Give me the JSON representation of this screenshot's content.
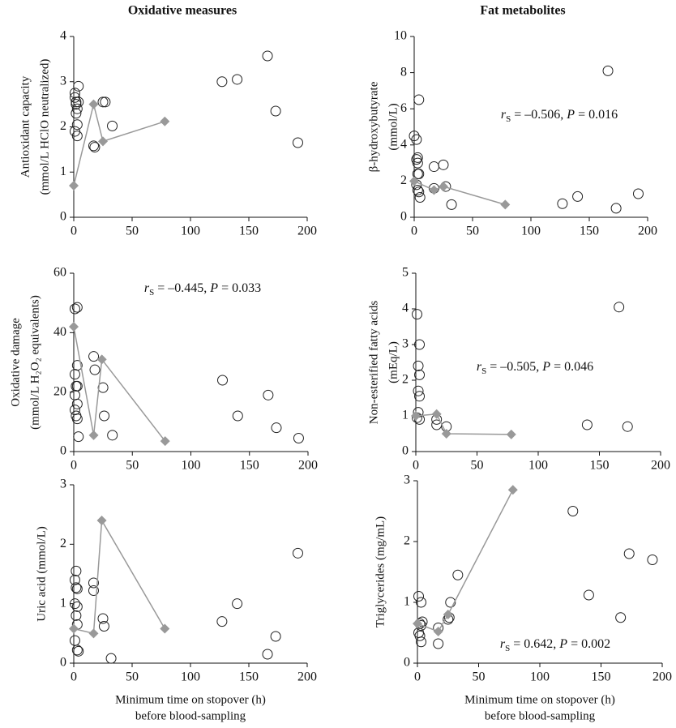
{
  "chart_data": [
    {
      "type": "scatter",
      "title": "Oxidative measures",
      "ylabel": [
        "Antioxidant capacity",
        "(mmol/L HClO neutralized)"
      ],
      "xlim": [
        0,
        200
      ],
      "xticks": [
        0,
        50,
        100,
        150,
        200
      ],
      "ylim": [
        0,
        4
      ],
      "yticks": [
        0,
        1,
        2,
        3,
        4
      ],
      "series": [
        {
          "marker": "circle",
          "color": "#222222",
          "x": [
            1,
            1,
            2,
            2,
            1,
            3,
            3,
            3,
            2,
            4,
            4,
            17,
            18,
            25,
            27,
            33,
            127,
            140,
            166,
            173,
            192
          ],
          "values": [
            2.75,
            2.65,
            2.55,
            2.5,
            1.9,
            1.8,
            2.05,
            2.4,
            2.3,
            2.9,
            2.55,
            1.58,
            1.55,
            2.55,
            2.55,
            2.02,
            3.0,
            3.05,
            3.57,
            2.35,
            1.65
          ]
        },
        {
          "marker": "diamond",
          "color": "#999999",
          "x": [
            0,
            17,
            25,
            78
          ],
          "values": [
            0.7,
            2.5,
            1.68,
            2.12
          ]
        }
      ]
    },
    {
      "type": "scatter",
      "title": "Fat metabolites",
      "ylabel": [
        "β-hydroxybutyrate",
        "(mmol/L)"
      ],
      "xlim": [
        0,
        200
      ],
      "xticks": [
        0,
        50,
        100,
        150,
        200
      ],
      "ylim": [
        0,
        10
      ],
      "yticks": [
        0,
        2,
        4,
        6,
        8,
        10
      ],
      "annotation": [
        "r",
        "S",
        " = –0.506, ",
        "P",
        " = 0.016"
      ],
      "series": [
        {
          "marker": "circle",
          "color": "#222222",
          "x": [
            0,
            2,
            3,
            2,
            3,
            4,
            3,
            4,
            2,
            3,
            4,
            5,
            17,
            17,
            25,
            27,
            32,
            127,
            140,
            166,
            173,
            192
          ],
          "values": [
            4.5,
            4.3,
            3.3,
            3.2,
            3.0,
            6.5,
            2.4,
            2.4,
            1.8,
            1.5,
            1.4,
            1.1,
            2.8,
            1.6,
            2.9,
            1.7,
            0.7,
            0.75,
            1.15,
            8.1,
            0.5,
            1.3
          ]
        },
        {
          "marker": "diamond",
          "color": "#999999",
          "x": [
            0,
            17,
            25,
            78
          ],
          "values": [
            2.0,
            1.5,
            1.7,
            0.7
          ]
        }
      ]
    },
    {
      "type": "scatter",
      "ylabel": [
        "Oxidative damage",
        "(mmol/L H₂O₂ equivalents)"
      ],
      "xlim": [
        0,
        200
      ],
      "xticks": [
        0,
        50,
        100,
        150,
        200
      ],
      "ylim": [
        0,
        60
      ],
      "yticks": [
        0,
        20,
        40,
        60
      ],
      "annotation": [
        "r",
        "S",
        " = –0.445,  ",
        "P",
        " = 0.033"
      ],
      "series": [
        {
          "marker": "circle",
          "color": "#222222",
          "x": [
            1,
            3,
            3,
            1,
            3,
            2,
            1,
            3,
            1,
            2,
            3,
            4,
            17,
            18,
            25,
            26,
            33,
            127,
            140,
            166,
            173,
            192
          ],
          "values": [
            48,
            48.5,
            29,
            26,
            22,
            22,
            19,
            16,
            14,
            12,
            11,
            5,
            32,
            27.5,
            21.5,
            12,
            5.5,
            24,
            12,
            19,
            8,
            4.5
          ]
        },
        {
          "marker": "diamond",
          "color": "#999999",
          "x": [
            0,
            17,
            24,
            78
          ],
          "values": [
            42,
            5.5,
            31,
            3.5
          ]
        }
      ]
    },
    {
      "type": "scatter",
      "ylabel": [
        "Non-esterified fatty acids",
        "(mEq/L)"
      ],
      "xlim": [
        0,
        200
      ],
      "xticks": [
        0,
        50,
        100,
        150,
        200
      ],
      "ylim": [
        0,
        5
      ],
      "yticks": [
        0,
        1,
        2,
        3,
        4,
        5
      ],
      "annotation": [
        "r",
        "S",
        " = –0.505,  ",
        "P",
        " = 0.046"
      ],
      "series": [
        {
          "marker": "circle",
          "color": "#222222",
          "x": [
            1,
            3,
            2,
            3,
            2,
            3,
            2,
            1,
            3,
            17,
            17,
            25,
            140,
            166,
            173
          ],
          "values": [
            3.85,
            3.0,
            2.4,
            2.15,
            1.7,
            1.55,
            1.1,
            0.95,
            0.9,
            0.9,
            0.75,
            0.7,
            0.75,
            4.05,
            0.7
          ]
        },
        {
          "marker": "diamond",
          "color": "#999999",
          "x": [
            0,
            17,
            25,
            78
          ],
          "values": [
            1.0,
            1.05,
            0.5,
            0.48
          ]
        }
      ]
    },
    {
      "type": "scatter",
      "ylabel": [
        "Uric acid (mmol/L)"
      ],
      "xlabel": [
        "Minimum time on stopover (h)",
        "before blood-sampling"
      ],
      "xlim": [
        0,
        200
      ],
      "xticks": [
        0,
        50,
        100,
        150,
        200
      ],
      "ylim": [
        0,
        3
      ],
      "yticks": [
        0,
        1,
        2,
        3
      ],
      "series": [
        {
          "marker": "circle",
          "color": "#222222",
          "x": [
            2,
            1,
            2,
            3,
            1,
            3,
            2,
            3,
            1,
            3,
            4,
            17,
            17,
            25,
            26,
            32,
            127,
            140,
            166,
            173,
            192
          ],
          "values": [
            1.55,
            1.4,
            1.27,
            1.25,
            1.0,
            0.95,
            0.8,
            0.65,
            0.38,
            0.22,
            0.2,
            1.35,
            1.22,
            0.75,
            0.62,
            0.08,
            0.7,
            1.0,
            0.15,
            0.45,
            1.85
          ]
        },
        {
          "marker": "diamond",
          "color": "#999999",
          "x": [
            0,
            17,
            24,
            78
          ],
          "values": [
            0.58,
            0.5,
            2.4,
            0.58
          ]
        }
      ]
    },
    {
      "type": "scatter",
      "ylabel": [
        "Triglycerides (mg/mL)"
      ],
      "xlabel": [
        "Minimum time on stopover (h)",
        "before blood-sampling"
      ],
      "xlim": [
        0,
        200
      ],
      "xticks": [
        0,
        50,
        100,
        150,
        200
      ],
      "ylim": [
        0,
        3
      ],
      "yticks": [
        0,
        1,
        2,
        3
      ],
      "annotation": [
        "r",
        "S",
        " = 0.642,   ",
        "P",
        " = 0.002"
      ],
      "series": [
        {
          "marker": "circle",
          "color": "#222222",
          "x": [
            1,
            3,
            2,
            4,
            3,
            1,
            2,
            3,
            17,
            17,
            25,
            26,
            27,
            33,
            127,
            140,
            166,
            173,
            192
          ],
          "values": [
            1.1,
            1.0,
            0.65,
            0.68,
            0.62,
            0.5,
            0.45,
            0.35,
            0.58,
            0.32,
            0.72,
            0.75,
            1.0,
            1.45,
            2.5,
            1.12,
            0.75,
            1.8,
            1.7
          ]
        },
        {
          "marker": "diamond",
          "color": "#999999",
          "x": [
            0,
            17,
            25,
            78
          ],
          "values": [
            0.65,
            0.52,
            0.8,
            2.85
          ]
        }
      ]
    }
  ]
}
